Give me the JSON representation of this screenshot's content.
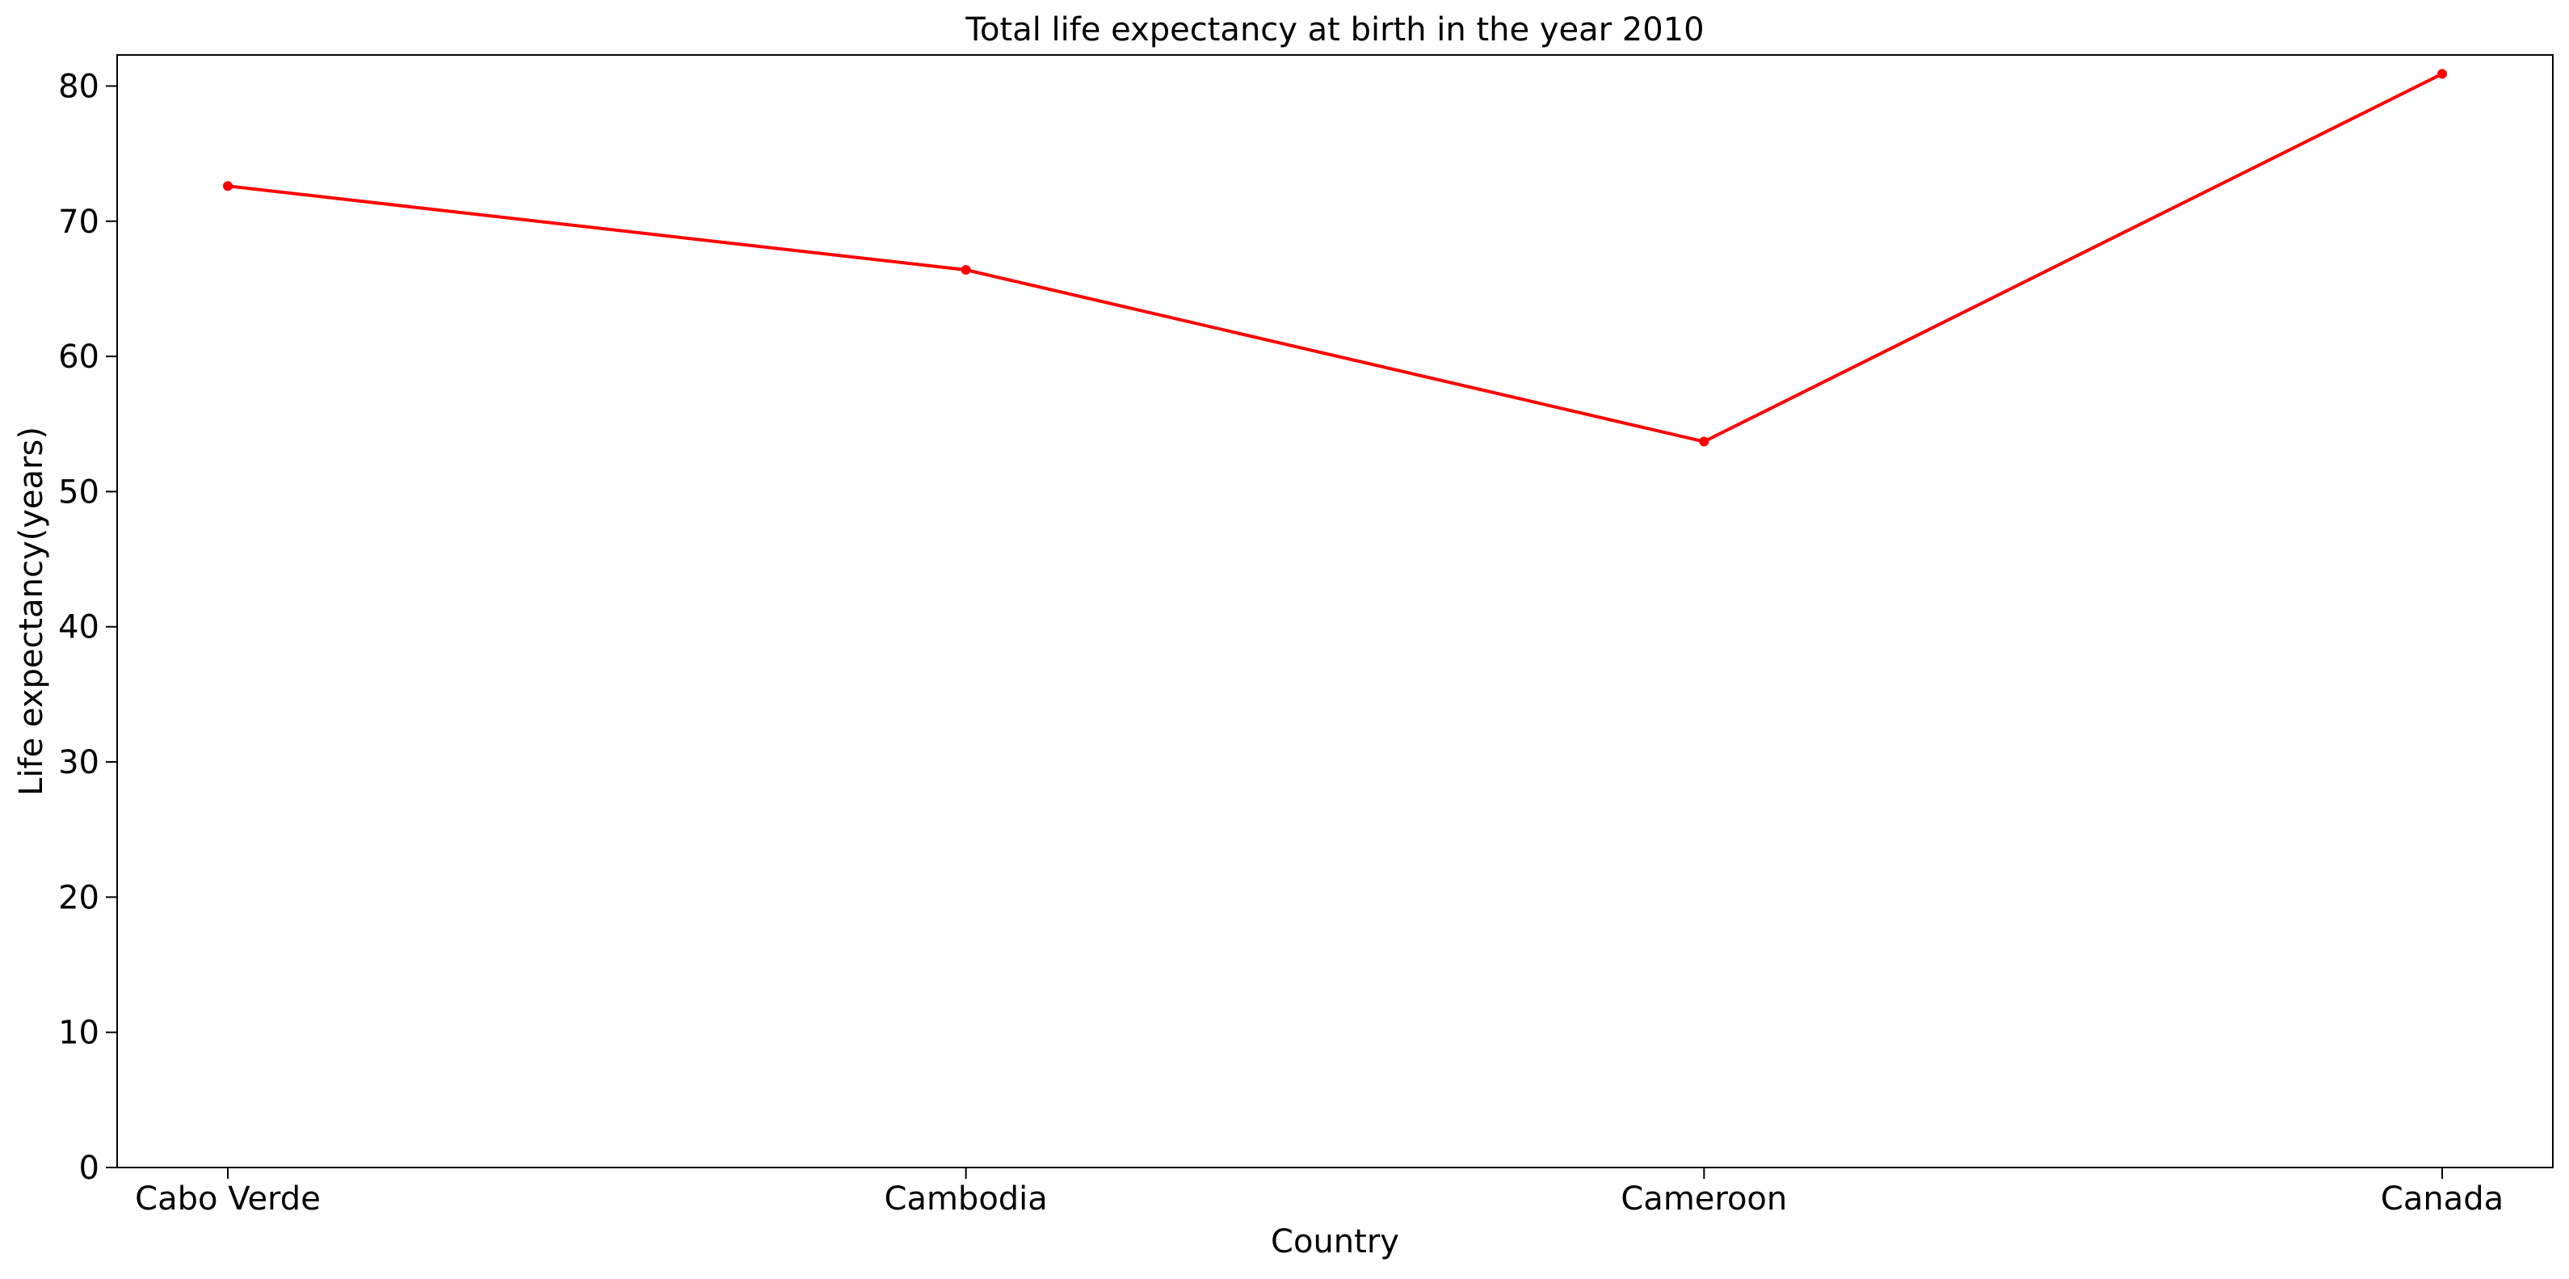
{
  "chart_data": {
    "type": "line",
    "title": "Total life expectancy at birth in the year 2010",
    "xlabel": "Country",
    "ylabel": "Life expectancy(years)",
    "categories": [
      "Cabo Verde",
      "Cambodia",
      "Cameroon",
      "Canada"
    ],
    "series": [
      {
        "values": [
          72.6,
          66.4,
          53.7,
          80.9
        ],
        "color": "#ff0000",
        "marker": "circle"
      }
    ],
    "ylim": [
      0,
      82.3
    ],
    "yticks": [
      0,
      10,
      20,
      30,
      40,
      50,
      60,
      70,
      80
    ],
    "grid": false,
    "legend": "none"
  }
}
